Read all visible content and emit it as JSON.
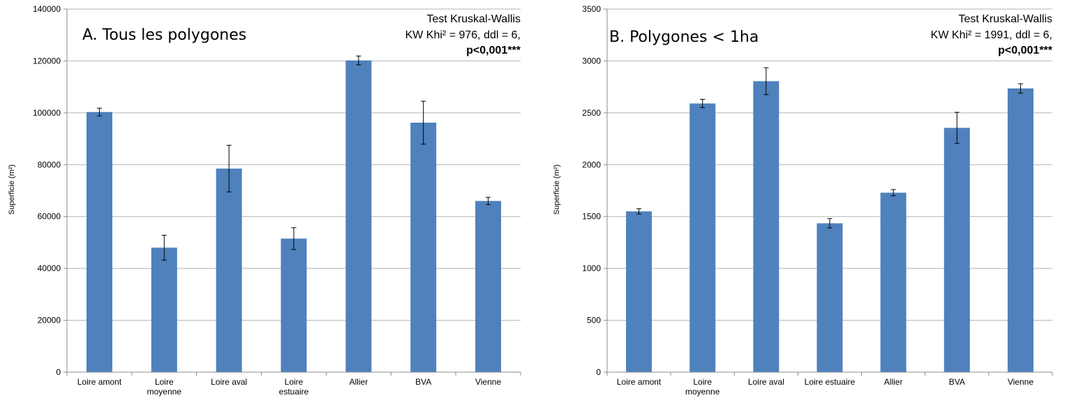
{
  "colors": {
    "bar": "#4f81bd",
    "grid": "#b3b3b3",
    "axis": "#8c8c8c",
    "error": "#000000"
  },
  "chart_data": [
    {
      "type": "bar",
      "title": "A. Tous les polygones",
      "annotation": [
        "Test Kruskal-Wallis",
        "KW Khi² = 976, ddl = 6,",
        "p<0,001***"
      ],
      "ylabel": "Superficie (m²)",
      "xlabel": "",
      "ylim": [
        0,
        140000
      ],
      "yticks": [
        0,
        20000,
        40000,
        60000,
        80000,
        100000,
        120000,
        140000
      ],
      "ytick_labels": [
        "0",
        "20000",
        "40000",
        "60000",
        "80000",
        "100000",
        "120000",
        "140000"
      ],
      "grid": "horizontal",
      "categories": [
        "Loire amont",
        "Loire moyenne",
        "Loire aval",
        "Loire estuaire",
        "Allier",
        "BVA",
        "Vienne"
      ],
      "category_lines": [
        [
          "Loire amont"
        ],
        [
          "Loire",
          "moyenne"
        ],
        [
          "Loire aval"
        ],
        [
          "Loire",
          "estuaire"
        ],
        [
          "Allier"
        ],
        [
          "BVA"
        ],
        [
          "Vienne"
        ]
      ],
      "values": [
        100300,
        48000,
        78500,
        51500,
        120200,
        96200,
        66000
      ],
      "errors": [
        1500,
        4800,
        9000,
        4200,
        1700,
        8300,
        1400
      ]
    },
    {
      "type": "bar",
      "title": "B. Polygones < 1ha",
      "annotation": [
        "Test Kruskal-Wallis",
        "KW Khi² = 1991, ddl = 6,",
        "p<0,001***"
      ],
      "ylabel": "Superficie (m²)",
      "xlabel": "",
      "ylim": [
        0,
        3500
      ],
      "yticks": [
        0,
        500,
        1000,
        1500,
        2000,
        2500,
        3000,
        3500
      ],
      "ytick_labels": [
        "0",
        "500",
        "1000",
        "1500",
        "2000",
        "2500",
        "3000",
        "3500"
      ],
      "grid": "horizontal",
      "categories": [
        "Loire amont",
        "Loire moyenne",
        "Loire aval",
        "Loire estuaire",
        "Allier",
        "BVA",
        "Vienne"
      ],
      "category_lines": [
        [
          "Loire amont"
        ],
        [
          "Loire",
          "moyenne"
        ],
        [
          "Loire aval"
        ],
        [
          "Loire estuaire"
        ],
        [
          "Allier"
        ],
        [
          "BVA"
        ],
        [
          "Vienne"
        ]
      ],
      "values": [
        1550,
        2590,
        2805,
        1435,
        1730,
        2355,
        2735
      ],
      "errors": [
        25,
        40,
        130,
        45,
        30,
        150,
        45
      ]
    }
  ]
}
